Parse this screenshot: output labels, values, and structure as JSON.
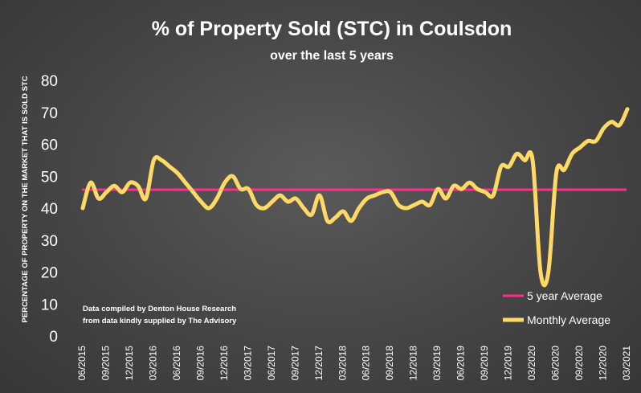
{
  "colors": {
    "monthly_line": "#ffd966",
    "average_line": "#ff2d8e",
    "text": "#ffffff"
  },
  "chart_data": {
    "type": "line",
    "title": "% of Property Sold (STC) in Coulsdon",
    "subtitle": "over the last 5 years",
    "xlabel": "",
    "ylabel": "PERCENTAGE OF PROPERTY ON THE MARKET THAT IS SOLD STC",
    "ylim": [
      0,
      80
    ],
    "yticks": [
      "0",
      "10",
      "20",
      "30",
      "40",
      "50",
      "60",
      "70",
      "80"
    ],
    "xtick_labels": [
      "06/2015",
      "09/2015",
      "12/2015",
      "03/2016",
      "06/2016",
      "09/2016",
      "12/2016",
      "03/2017",
      "06/2017",
      "09/2017",
      "12/2017",
      "03/2018",
      "06/2018",
      "09/2018",
      "12/2018",
      "03/2019",
      "06/2019",
      "09/2019",
      "12/2019",
      "03/2020",
      "06/2020",
      "09/2020",
      "12/2020",
      "03/2021"
    ],
    "series": [
      {
        "name": "Monthly Average",
        "values": [
          40,
          48,
          43,
          45,
          47,
          45,
          48,
          47,
          43,
          55,
          55,
          53,
          51,
          48,
          45,
          42,
          40,
          43,
          48,
          50,
          46,
          46,
          41,
          40,
          42,
          44,
          42,
          43,
          40,
          38,
          44,
          36,
          37,
          39,
          36,
          40,
          43,
          44,
          45,
          45,
          41,
          40,
          41,
          42,
          41,
          46,
          43,
          47,
          46,
          48,
          46,
          45,
          44,
          53,
          53,
          57,
          55,
          55,
          20,
          20,
          51,
          52,
          57,
          59,
          61,
          61,
          65,
          67,
          66,
          71
        ]
      },
      {
        "name": "5 year Average",
        "values": [
          45.8
        ]
      }
    ],
    "legend": {
      "position": "bottom-right",
      "entries": [
        "5 year Average",
        "Monthly Average"
      ]
    },
    "annotation": {
      "line1": "Data compiled by Denton House Research",
      "line2": "from data kindly supplied by The Advisory"
    }
  }
}
